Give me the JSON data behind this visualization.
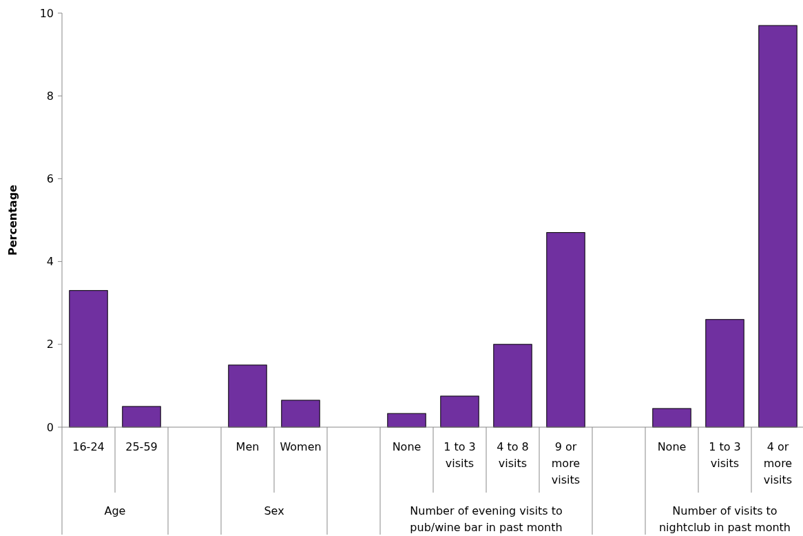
{
  "chart_data": {
    "type": "bar",
    "ylabel": "Percentage",
    "categories": [
      "16-24",
      "25-59",
      null,
      "Men",
      "Women",
      null,
      "None",
      "1 to 3 visits",
      "4 to 8 visits",
      "9 or more visits",
      null,
      "None",
      "1 to 3 visits",
      "4 or more visits"
    ],
    "values": [
      3.3,
      0.5,
      null,
      1.5,
      0.65,
      null,
      0.33,
      0.75,
      2.0,
      4.7,
      null,
      0.45,
      2.6,
      9.7
    ],
    "color": "#7030a0",
    "ylim": [
      0,
      10
    ],
    "yticks": [
      0,
      2,
      4,
      6,
      8,
      10
    ],
    "grid": false,
    "annotations": [
      "Age",
      "Sex",
      "Number of evening visits to pub/wine bar in past month",
      "Number of visits to nightclub in past month"
    ]
  }
}
